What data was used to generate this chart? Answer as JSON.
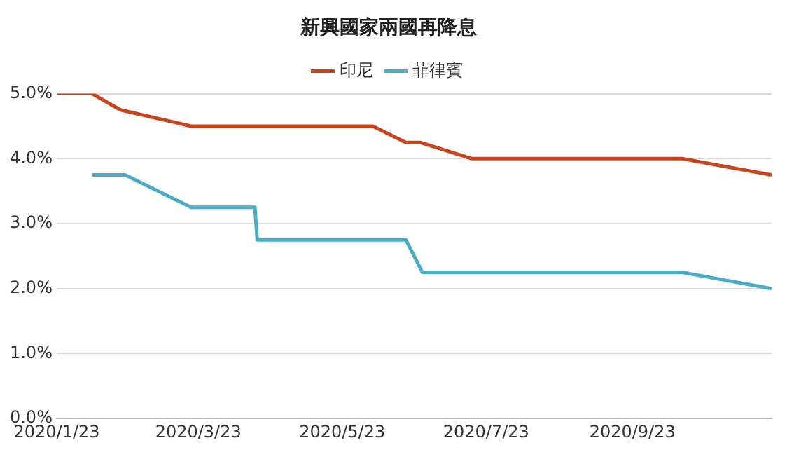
{
  "chart_data": {
    "type": "line",
    "title": "新興國家兩國再降息",
    "series": [
      {
        "name": "印尼",
        "color": "#c8441d",
        "x": [
          "2020-01-23",
          "2020-02-07",
          "2020-02-19",
          "2020-03-20",
          "2020-06-05",
          "2020-06-19",
          "2020-06-25",
          "2020-07-17",
          "2020-10-14",
          "2020-11-21"
        ],
        "values": [
          5.0,
          5.0,
          4.75,
          4.5,
          4.5,
          4.25,
          4.25,
          4.0,
          4.0,
          3.75
        ]
      },
      {
        "name": "菲律賓",
        "color": "#4bacc6",
        "x": [
          "2020-02-07",
          "2020-02-21",
          "2020-03-20",
          "2020-04-16",
          "2020-04-17",
          "2020-06-19",
          "2020-06-26",
          "2020-10-14",
          "2020-11-21"
        ],
        "values": [
          3.75,
          3.75,
          3.25,
          3.25,
          2.75,
          2.75,
          2.25,
          2.25,
          2.0
        ]
      }
    ],
    "xlim": [
      "2020-01-23",
      "2020-11-21"
    ],
    "xticks": [
      {
        "value": "2020-01-23",
        "label": "2020/1/23"
      },
      {
        "value": "2020-03-23",
        "label": "2020/3/23"
      },
      {
        "value": "2020-05-23",
        "label": "2020/5/23"
      },
      {
        "value": "2020-07-23",
        "label": "2020/7/23"
      },
      {
        "value": "2020-09-23",
        "label": "2020/9/23"
      }
    ],
    "ylim": [
      0,
      5
    ],
    "yticks": [
      {
        "value": 0,
        "label": "0.0%"
      },
      {
        "value": 1,
        "label": "1.0%"
      },
      {
        "value": 2,
        "label": "2.0%"
      },
      {
        "value": 3,
        "label": "3.0%"
      },
      {
        "value": 4,
        "label": "4.0%"
      },
      {
        "value": 5,
        "label": "5.0%"
      }
    ],
    "grid": "y",
    "legend": "top",
    "marker": "none",
    "line_style": "solid"
  }
}
